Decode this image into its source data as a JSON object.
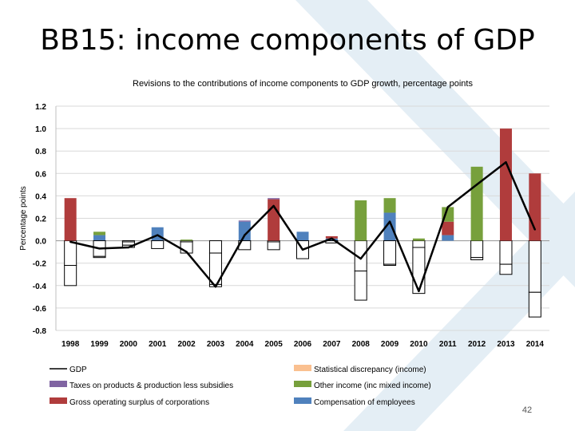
{
  "slide": {
    "title": "BB15:  income components of GDP",
    "page_number": "42"
  },
  "colors": {
    "gdp": "#000000",
    "statistical_discrepancy": "#fac090",
    "taxes": "#8064a2",
    "other_income": "#77a03c",
    "gross_operating_surplus": "#b03c3c",
    "compensation": "#4f81bd",
    "negative_fill": "#ffffff",
    "watermark": "#e4eef5"
  },
  "chart_data": {
    "type": "bar",
    "stacked": true,
    "title": "Revisions to the contributions of income components to GDP growth, percentage points",
    "ylabel": "Percentage points",
    "xlabel": "",
    "ylim": [
      -0.8,
      1.2
    ],
    "yticks": [
      -0.8,
      -0.6,
      -0.4,
      -0.2,
      0.0,
      0.2,
      0.4,
      0.6,
      0.8,
      1.0,
      1.2
    ],
    "ytick_labels": [
      "-0.8",
      "-0.6",
      "-0.4",
      "-0.2",
      "0.0",
      "0.2",
      "0.4",
      "0.6",
      "0.8",
      "1.0",
      "1.2"
    ],
    "grid": true,
    "legend_position": "bottom",
    "categories": [
      "1998",
      "1999",
      "2000",
      "2001",
      "2002",
      "2003",
      "2004",
      "2005",
      "2006",
      "2007",
      "2008",
      "2009",
      "2010",
      "2011",
      "2012",
      "2013",
      "2014"
    ],
    "series": [
      {
        "name": "Compensation of employees",
        "color_key": "compensation",
        "values": [
          -0.22,
          0.05,
          -0.01,
          0.12,
          -0.01,
          -0.11,
          0.17,
          -0.01,
          0.08,
          0.02,
          -0.27,
          0.25,
          -0.06,
          0.05,
          -0.15,
          -0.21,
          -0.46
        ]
      },
      {
        "name": "Gross operating surplus of corporations",
        "color_key": "gross_operating_surplus",
        "values": [
          0.38,
          -0.14,
          -0.03,
          -0.07,
          -0.1,
          -0.28,
          -0.08,
          0.37,
          -0.16,
          0.02,
          0.0,
          -0.21,
          0.0,
          0.12,
          0.0,
          1.0,
          0.6
        ]
      },
      {
        "name": "Other income (inc mixed income)",
        "color_key": "other_income",
        "values": [
          0.0,
          0.03,
          -0.02,
          0.0,
          0.01,
          0.0,
          0.0,
          0.0,
          0.0,
          0.0,
          0.36,
          0.13,
          0.02,
          0.13,
          0.66,
          0.0,
          0.0
        ]
      },
      {
        "name": "Taxes on products & production less subsidies",
        "color_key": "taxes",
        "values": [
          0.0,
          0.0,
          0.0,
          0.0,
          0.0,
          0.0,
          0.01,
          0.01,
          0.0,
          0.0,
          0.0,
          0.0,
          0.0,
          0.0,
          0.0,
          0.0,
          0.0
        ]
      },
      {
        "name": "Statistical discrepancy (income)",
        "color_key": "statistical_discrepancy",
        "values": [
          -0.18,
          -0.01,
          0.0,
          0.0,
          0.0,
          -0.02,
          0.0,
          -0.07,
          0.0,
          -0.02,
          -0.26,
          -0.01,
          -0.41,
          0.0,
          -0.02,
          -0.09,
          -0.22
        ]
      }
    ],
    "line": {
      "name": "GDP",
      "color_key": "gdp",
      "values": [
        -0.01,
        -0.07,
        -0.06,
        0.05,
        -0.1,
        -0.41,
        0.05,
        0.31,
        -0.08,
        0.02,
        -0.16,
        0.17,
        -0.45,
        0.3,
        0.5,
        0.7,
        0.1
      ]
    },
    "legend": [
      {
        "label": "GDP",
        "kind": "line",
        "color_key": "gdp"
      },
      {
        "label": "Statistical discrepancy (income)",
        "kind": "box",
        "color_key": "statistical_discrepancy"
      },
      {
        "label": "Taxes on products & production less subsidies",
        "kind": "box",
        "color_key": "taxes"
      },
      {
        "label": "Other income (inc mixed income)",
        "kind": "box",
        "color_key": "other_income"
      },
      {
        "label": "Gross operating surplus of corporations",
        "kind": "box",
        "color_key": "gross_operating_surplus"
      },
      {
        "label": "Compensation of employees",
        "kind": "box",
        "color_key": "compensation"
      }
    ]
  }
}
